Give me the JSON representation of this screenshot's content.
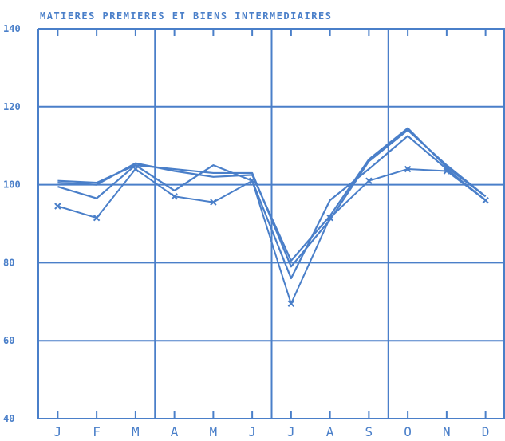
{
  "colors": {
    "ink": "#4a7fc9",
    "background": "#ffffff"
  },
  "chart_data": {
    "type": "line",
    "title": "MATIERES PREMIERES ET BIENS INTERMEDIAIRES",
    "xlabel": "",
    "ylabel": "",
    "categories": [
      "J",
      "F",
      "M",
      "A",
      "M",
      "J",
      "J",
      "A",
      "S",
      "O",
      "N",
      "D"
    ],
    "ylim": [
      40,
      140
    ],
    "yticks": [
      40,
      60,
      80,
      100,
      120,
      140
    ],
    "grid": true,
    "series": [
      {
        "marker": "x",
        "values": [
          94.5,
          91.5,
          104,
          97,
          95.5,
          101,
          69.5,
          91.5,
          101,
          104,
          103.5,
          96
        ]
      },
      {
        "marker": "none",
        "values": [
          99.5,
          96.5,
          105,
          98.5,
          105,
          101,
          76,
          96,
          104,
          112.5,
          104,
          96
        ]
      },
      {
        "marker": "none",
        "values": [
          100.5,
          100,
          105.5,
          103.5,
          102,
          102.5,
          80.5,
          92,
          106.5,
          114.5,
          104.5,
          97
        ]
      },
      {
        "marker": "none",
        "values": [
          101,
          100.5,
          105,
          104,
          103,
          103,
          79,
          91,
          106,
          114,
          105,
          97
        ]
      }
    ]
  }
}
